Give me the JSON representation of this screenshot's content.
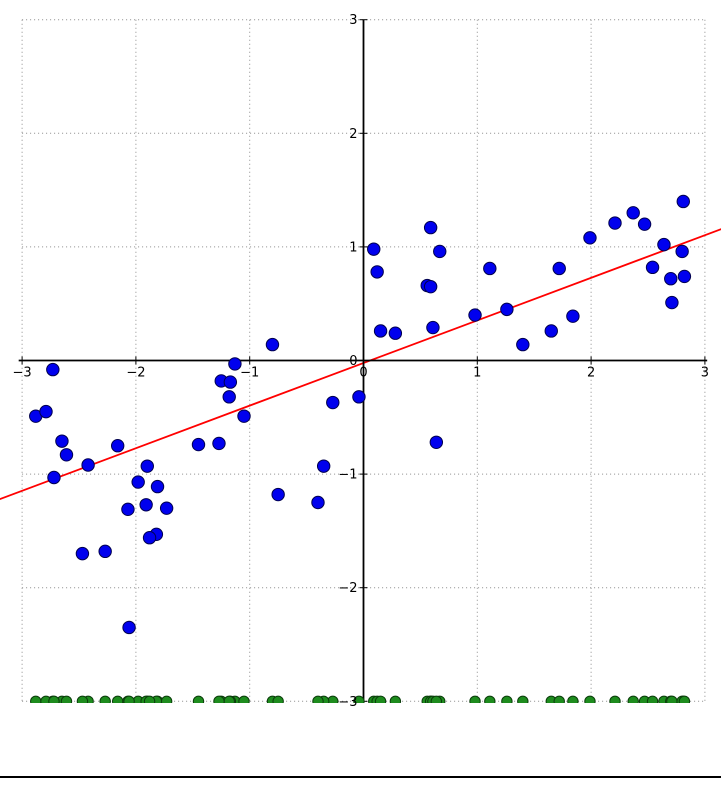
{
  "figure": {
    "background": "#ffffff",
    "divider_color": "#000000"
  },
  "chart_data": {
    "type": "scatter",
    "title": "",
    "xlabel": "",
    "ylabel": "",
    "xlim": [
      -3.2,
      3.15
    ],
    "ylim": [
      -3,
      3
    ],
    "grid": {
      "on": true,
      "style": "dotted",
      "color": "#8c8c8c",
      "lines_at": [
        -3,
        -2,
        -1,
        1,
        2,
        3
      ]
    },
    "axes": {
      "spine_color": "#000000",
      "spines_cross_at": [
        0,
        0
      ],
      "tick_label_color": "#000000"
    },
    "x_ticks": {
      "values": [
        -3,
        -2,
        -1,
        0,
        1,
        2,
        3
      ],
      "labels": [
        "−3",
        "−2",
        "−1",
        "0",
        "1",
        "2",
        "3"
      ]
    },
    "y_ticks": {
      "values": [
        -3,
        -2,
        -1,
        0,
        1,
        2,
        3
      ],
      "labels": [
        "−3",
        "−2",
        "−1",
        "0",
        "1",
        "2",
        "3"
      ]
    },
    "legend": {
      "visible": false
    },
    "series": [
      {
        "name": "observations",
        "type": "scatter",
        "marker": "circle",
        "color": "#0000ee",
        "edge_color": "#00004d",
        "points": [
          [
            0.09,
            0.98
          ],
          [
            0.12,
            0.78
          ],
          [
            0.15,
            0.26
          ],
          [
            0.28,
            0.24
          ],
          [
            0.59,
            1.17
          ],
          [
            0.56,
            0.66
          ],
          [
            0.59,
            0.65
          ],
          [
            0.67,
            0.96
          ],
          [
            0.61,
            0.29
          ],
          [
            0.98,
            0.4
          ],
          [
            1.11,
            0.81
          ],
          [
            1.26,
            0.45
          ],
          [
            1.4,
            0.14
          ],
          [
            1.65,
            0.26
          ],
          [
            1.72,
            0.81
          ],
          [
            1.84,
            0.39
          ],
          [
            1.99,
            1.08
          ],
          [
            2.21,
            1.21
          ],
          [
            2.37,
            1.3
          ],
          [
            2.47,
            1.2
          ],
          [
            2.54,
            0.82
          ],
          [
            2.64,
            1.02
          ],
          [
            2.7,
            0.72
          ],
          [
            2.71,
            0.51
          ],
          [
            2.81,
            1.4
          ],
          [
            2.8,
            0.96
          ],
          [
            2.82,
            0.74
          ],
          [
            -0.8,
            0.14
          ],
          [
            -2.73,
            -0.08
          ],
          [
            -1.13,
            -0.03
          ],
          [
            -1.25,
            -0.18
          ],
          [
            -1.17,
            -0.19
          ],
          [
            -1.18,
            -0.32
          ],
          [
            -2.88,
            -0.49
          ],
          [
            -2.79,
            -0.45
          ],
          [
            -1.05,
            -0.49
          ],
          [
            -0.27,
            -0.37
          ],
          [
            -0.04,
            -0.32
          ],
          [
            -2.65,
            -0.71
          ],
          [
            -2.61,
            -0.83
          ],
          [
            -2.16,
            -0.75
          ],
          [
            -1.45,
            -0.74
          ],
          [
            -1.27,
            -0.73
          ],
          [
            -2.42,
            -0.92
          ],
          [
            -2.72,
            -1.03
          ],
          [
            -1.9,
            -0.93
          ],
          [
            -1.98,
            -1.07
          ],
          [
            -1.81,
            -1.11
          ],
          [
            -0.35,
            -0.93
          ],
          [
            -0.75,
            -1.18
          ],
          [
            -0.4,
            -1.25
          ],
          [
            -1.91,
            -1.27
          ],
          [
            -2.07,
            -1.31
          ],
          [
            -1.73,
            -1.3
          ],
          [
            -1.82,
            -1.53
          ],
          [
            -1.88,
            -1.56
          ],
          [
            -2.47,
            -1.7
          ],
          [
            -2.27,
            -1.68
          ],
          [
            -2.06,
            -2.35
          ],
          [
            0.64,
            -0.72
          ]
        ]
      },
      {
        "name": "x-rug",
        "type": "rug",
        "marker": "circle",
        "color": "#1e8c1e",
        "edge_color": "#0b3d0b",
        "y": -3,
        "x": [
          0.09,
          0.12,
          0.15,
          0.28,
          0.59,
          0.56,
          0.59,
          0.67,
          0.61,
          0.98,
          1.11,
          1.26,
          1.4,
          1.65,
          1.72,
          1.84,
          1.99,
          2.21,
          2.37,
          2.47,
          2.54,
          2.64,
          2.7,
          2.71,
          2.81,
          2.8,
          2.82,
          -0.8,
          -2.73,
          -1.13,
          -1.25,
          -1.17,
          -1.18,
          -2.88,
          -2.79,
          -1.05,
          -0.27,
          -0.04,
          -2.65,
          -2.61,
          -2.16,
          -1.45,
          -1.27,
          -2.42,
          -2.72,
          -1.9,
          -1.98,
          -1.81,
          -0.35,
          -0.75,
          -0.4,
          -1.91,
          -2.07,
          -1.73,
          -1.82,
          -1.88,
          -2.47,
          -2.27,
          -2.06,
          0.64
        ]
      },
      {
        "name": "fit-line",
        "type": "line",
        "color": "#ff0000",
        "endpoints": [
          [
            -3.2,
            -1.222
          ],
          [
            3.15,
            1.159
          ]
        ]
      }
    ]
  }
}
